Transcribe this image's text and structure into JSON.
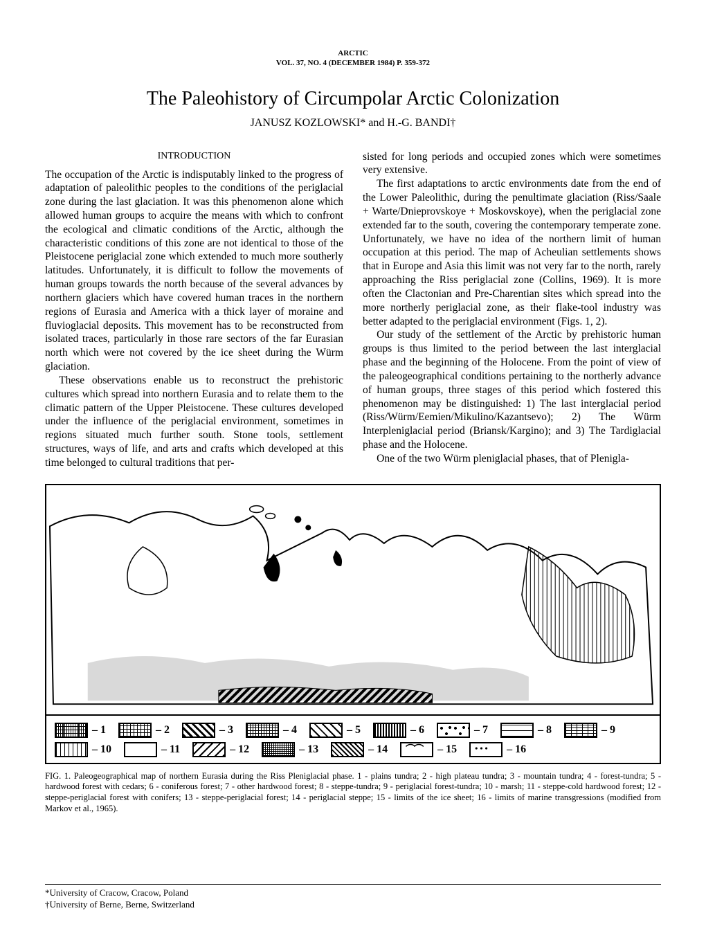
{
  "journal": {
    "name": "ARCTIC",
    "issue": "VOL. 37, NO. 4 (DECEMBER 1984) P. 359-372"
  },
  "paper": {
    "title": "The Paleohistory of Circumpolar Arctic Colonization",
    "authors": "JANUSZ KOZLOWSKI* and H.-G. BANDI†"
  },
  "headings": {
    "introduction": "INTRODUCTION"
  },
  "body": {
    "left_p1": "The occupation of the Arctic is indisputably linked to the progress of adaptation of paleolithic peoples to the conditions of the periglacial zone during the last glaciation. It was this phenomenon alone which allowed human groups to acquire the means with which to confront the ecological and climatic conditions of the Arctic, although the characteristic conditions of this zone are not identical to those of the Pleistocene periglacial zone which extended to much more southerly latitudes. Unfortunately, it is difficult to follow the movements of human groups towards the north because of the several advances by northern glaciers which have covered human traces in the northern regions of Eurasia and America with a thick layer of moraine and fluvioglacial deposits. This movement has to be reconstructed from isolated traces, particularly in those rare sectors of the far Eurasian north which were not covered by the ice sheet during the Würm glaciation.",
    "left_p2": "These observations enable us to reconstruct the prehistoric cultures which spread into northern Eurasia and to relate them to the climatic pattern of the Upper Pleistocene. These cultures developed under the influence of the periglacial environment, sometimes in regions situated much further south. Stone tools, settlement structures, ways of life, and arts and crafts which developed at this time belonged to cultural traditions that per-",
    "right_p1": "sisted for long periods and occupied zones which were sometimes very extensive.",
    "right_p2": "The first adaptations to arctic environments date from the end of the Lower Paleolithic, during the penultimate glaciation (Riss/Saale + Warte/Dnieprovskoye + Moskovskoye), when the periglacial zone extended far to the south, covering the contemporary temperate zone. Unfortunately, we have no idea of the northern limit of human occupation at this period. The map of Acheulian settlements shows that in Europe and Asia this limit was not very far to the north, rarely approaching the Riss periglacial zone (Collins, 1969). It is more often the Clactonian and Pre-Charentian sites which spread into the more northerly periglacial zone, as their flake-tool industry was better adapted to the periglacial environment (Figs. 1, 2).",
    "right_p3": "Our study of the settlement of the Arctic by prehistoric human groups is thus limited to the period between the last interglacial phase and the beginning of the Holocene. From the point of view of the paleogeographical conditions pertaining to the northerly advance of human groups, three stages of this period which fostered this phenomenon may be distinguished: 1) The last interglacial period (Riss/Würm/Eemien/Mikulino/Kazantsevo); 2) The Würm Interpleniglacial period (Briansk/Kargino); and 3) The Tardiglacial phase and the Holocene.",
    "right_p4": "One of the two Würm pleniglacial phases, that of Plenigla-"
  },
  "figure": {
    "legend_items": [
      {
        "num": "1",
        "pattern": "p1"
      },
      {
        "num": "2",
        "pattern": "p2"
      },
      {
        "num": "3",
        "pattern": "p3"
      },
      {
        "num": "4",
        "pattern": "p4"
      },
      {
        "num": "5",
        "pattern": "p5"
      },
      {
        "num": "6",
        "pattern": "p6"
      },
      {
        "num": "7",
        "pattern": "p7"
      },
      {
        "num": "8",
        "pattern": "p8"
      },
      {
        "num": "9",
        "pattern": "p9"
      },
      {
        "num": "10",
        "pattern": "p10"
      },
      {
        "num": "11",
        "pattern": "p11"
      },
      {
        "num": "12",
        "pattern": "p12"
      },
      {
        "num": "13",
        "pattern": "p13"
      },
      {
        "num": "14",
        "pattern": "p14"
      },
      {
        "num": "15",
        "pattern": "p15"
      },
      {
        "num": "16",
        "pattern": "p16"
      }
    ],
    "caption_label": "FIG. 1.",
    "caption_text": " Paleogeographical map of northern Eurasia during the Riss Pleniglacial phase. 1 - plains tundra; 2 - high plateau tundra; 3 - mountain tundra; 4 - forest-tundra; 5 - hardwood forest with cedars; 6 - coniferous forest; 7 - other hardwood forest; 8 - steppe-tundra; 9 - periglacial forest-tundra; 10 - marsh; 11 - steppe-cold hardwood forest; 12 - steppe-periglacial forest with conifers; 13 - steppe-periglacial forest; 14 - periglacial steppe; 15 - limits of the ice sheet; 16 - limits of marine transgressions (modified from Markov et al., 1965)."
  },
  "affiliations": {
    "line1": "*University of Cracow, Cracow, Poland",
    "line2": "†University of Berne, Berne, Switzerland"
  }
}
